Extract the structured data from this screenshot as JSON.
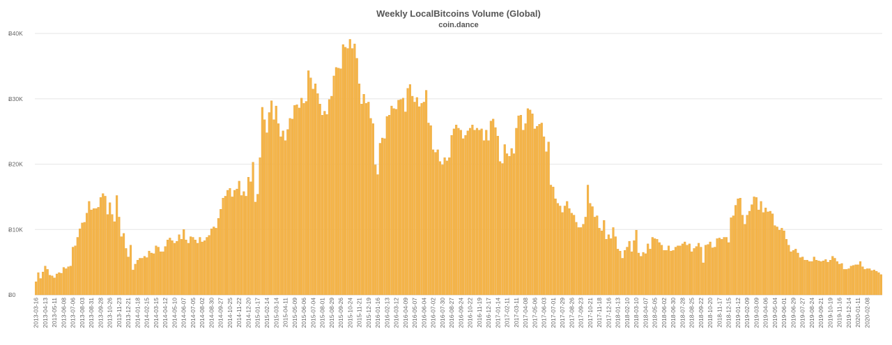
{
  "chart_data": {
    "type": "bar",
    "title": "Weekly LocalBitcoins Volume (Global)",
    "subtitle": "coin.dance",
    "xlabel": "",
    "ylabel": "",
    "ylim": [
      0,
      40000
    ],
    "yticks": [
      0,
      10000,
      20000,
      30000,
      40000
    ],
    "ytick_labels": [
      "Ƀ0",
      "Ƀ10K",
      "Ƀ20K",
      "Ƀ30K",
      "Ƀ40K"
    ],
    "grid": true,
    "legend": "none",
    "color": "#f5b548",
    "start_date": "2013-03-16",
    "week_step_days": 7,
    "tick_every": 4,
    "xtick_labels": [
      "2013-03-16",
      "2013-04-13",
      "2013-05-11",
      "2013-06-08",
      "2013-07-06",
      "2013-08-03",
      "2013-08-31",
      "2013-09-28",
      "2013-10-26",
      "2013-11-23",
      "2013-12-21",
      "2014-01-18",
      "2014-02-15",
      "2014-03-15",
      "2014-04-12",
      "2014-05-10",
      "2014-06-07",
      "2014-07-05",
      "2014-08-02",
      "2014-08-30",
      "2014-09-27",
      "2014-10-25",
      "2014-11-22",
      "2014-12-20",
      "2015-01-17",
      "2015-02-14",
      "2015-03-14",
      "2015-04-11",
      "2015-05-09",
      "2015-06-06",
      "2015-07-04",
      "2015-08-01",
      "2015-08-29",
      "2015-09-26",
      "2015-10-24",
      "2015-11-21",
      "2015-12-19",
      "2016-01-16",
      "2016-02-13",
      "2016-03-12",
      "2016-04-09",
      "2016-05-07",
      "2016-06-04",
      "2016-07-02",
      "2016-07-30",
      "2016-08-27",
      "2016-09-24",
      "2016-10-22",
      "2016-11-19",
      "2016-12-17",
      "2017-01-14",
      "2017-02-11",
      "2017-03-11",
      "2017-04-08",
      "2017-05-06",
      "2017-06-03",
      "2017-07-01",
      "2017-07-29",
      "2017-08-26",
      "2017-09-23",
      "2017-10-21",
      "2017-11-18",
      "2017-12-16",
      "2018-01-13",
      "2018-02-10",
      "2018-03-10",
      "2018-04-07",
      "2018-05-05",
      "2018-06-02",
      "2018-06-30",
      "2018-07-28",
      "2018-08-25",
      "2018-09-22",
      "2018-10-20",
      "2018-11-17",
      "2018-12-15",
      "2019-01-12",
      "2019-02-09",
      "2019-03-09",
      "2019-04-06",
      "2019-05-04",
      "2019-06-01",
      "2019-06-29",
      "2019-07-27",
      "2019-08-24",
      "2019-09-21",
      "2019-10-19",
      "2019-11-16",
      "2019-12-14",
      "2020-01-11",
      "2020-02-08"
    ],
    "values": [
      2000,
      3400,
      2500,
      3500,
      4400,
      3900,
      3000,
      2900,
      2600,
      3200,
      3400,
      3300,
      4200,
      4000,
      4300,
      4400,
      7300,
      7500,
      8800,
      10100,
      11000,
      11100,
      12500,
      14300,
      13000,
      13200,
      13200,
      13400,
      14900,
      15500,
      15100,
      12300,
      14100,
      12300,
      11200,
      15200,
      11900,
      8900,
      9400,
      7100,
      5800,
      7600,
      3800,
      4700,
      5300,
      5600,
      5600,
      5900,
      5700,
      6700,
      6400,
      6300,
      7500,
      7300,
      6600,
      6600,
      7400,
      8400,
      8700,
      8300,
      7900,
      8200,
      9200,
      8500,
      10000,
      8400,
      7900,
      8900,
      8800,
      8400,
      7900,
      8800,
      8100,
      8300,
      8800,
      9100,
      10100,
      10400,
      10200,
      11700,
      13100,
      14800,
      15100,
      16000,
      16300,
      15000,
      16000,
      16200,
      17400,
      15200,
      15800,
      15100,
      18000,
      17300,
      20300,
      14200,
      15400,
      21000,
      28700,
      26800,
      24800,
      27900,
      29700,
      26800,
      28900,
      26200,
      24200,
      25100,
      23600,
      25300,
      27000,
      26900,
      29000,
      29100,
      28600,
      30100,
      29300,
      29600,
      34300,
      33200,
      31500,
      32300,
      30800,
      29200,
      27500,
      28100,
      27600,
      29900,
      30400,
      33500,
      34800,
      34700,
      34600,
      38300,
      37900,
      37700,
      39100,
      37700,
      38400,
      36200,
      32300,
      29200,
      30700,
      29300,
      29500,
      27000,
      26200,
      19900,
      18400,
      23200,
      24000,
      23900,
      27300,
      27500,
      28900,
      28500,
      28400,
      29800,
      29900,
      30100,
      28000,
      31600,
      32200,
      30400,
      29500,
      30200,
      28800,
      29300,
      29500,
      31300,
      26300,
      25900,
      22200,
      21800,
      22200,
      20400,
      19900,
      21000,
      20500,
      21000,
      24400,
      25400,
      26000,
      25500,
      25200,
      23900,
      24400,
      25100,
      25500,
      26000,
      25200,
      25500,
      25200,
      25400,
      23600,
      25200,
      23600,
      26600,
      26900,
      25600,
      24300,
      20400,
      20100,
      23000,
      21600,
      21200,
      22400,
      21600,
      25500,
      27400,
      27500,
      25200,
      26200,
      28500,
      28300,
      27700,
      25400,
      25800,
      26100,
      26300,
      24200,
      21900,
      23400,
      16800,
      16500,
      14700,
      14000,
      13600,
      12600,
      13600,
      14300,
      13200,
      12500,
      12200,
      11100,
      10300,
      10300,
      10800,
      11900,
      16800,
      14000,
      13500,
      11900,
      12100,
      10200,
      9800,
      11400,
      8500,
      9200,
      8600,
      10300,
      8900,
      7000,
      6700,
      5600,
      6800,
      7300,
      8200,
      6600,
      8300,
      9900,
      6400,
      5900,
      6500,
      6300,
      7800,
      7000,
      8800,
      8600,
      8500,
      8000,
      7600,
      6800,
      6800,
      7500,
      6700,
      6800,
      7300,
      7500,
      7500,
      7800,
      8100,
      7600,
      7800,
      6600,
      7100,
      7400,
      7900,
      7300,
      4900,
      7600,
      7700,
      8100,
      7200,
      7300,
      8600,
      8700,
      8500,
      8800,
      8800,
      8000,
      11800,
      12100,
      13700,
      14700,
      14800,
      12200,
      10800,
      12200,
      12800,
      13800,
      15000,
      14900,
      13000,
      14300,
      12600,
      13300,
      12700,
      12800,
      12400,
      10600,
      10400,
      9900,
      10200,
      9800,
      8500,
      7600,
      6600,
      6800,
      7000,
      6400,
      5700,
      5800,
      5300,
      5300,
      5100,
      5100,
      5800,
      5300,
      5200,
      5100,
      5200,
      5400,
      5000,
      5300,
      5900,
      5600,
      5100,
      4700,
      4800,
      3900,
      3900,
      4000,
      4400,
      4500,
      4600,
      4600,
      5100,
      4300,
      3900,
      4000,
      4000,
      3700,
      3800,
      3600,
      3400,
      3100
    ]
  }
}
